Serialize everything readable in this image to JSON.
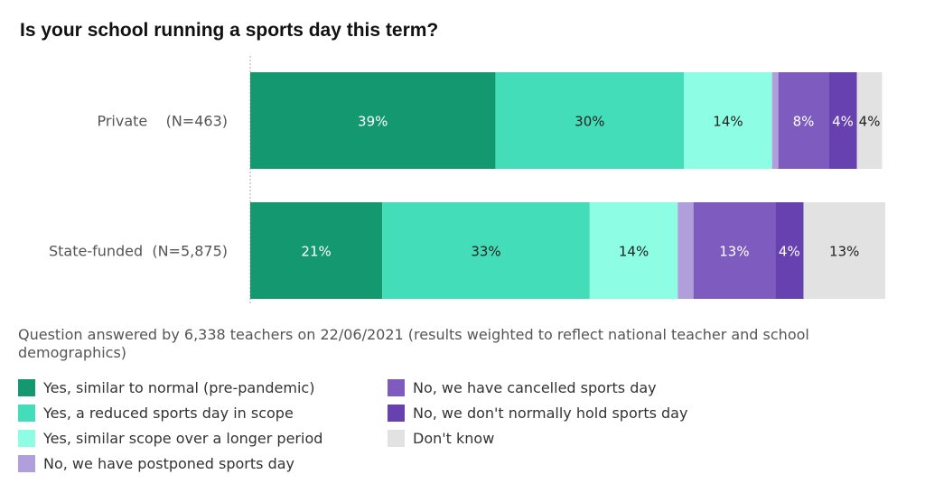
{
  "chart_data": {
    "type": "bar",
    "orientation": "horizontal",
    "stacked": true,
    "title": "Is your school running a sports day this term?",
    "xlim": [
      0,
      100
    ],
    "categories": [
      "Private    (N=463)",
      "State-funded  (N=5,875)"
    ],
    "series": [
      {
        "name": "Yes, similar to normal (pre-pandemic)",
        "color": "#13986f",
        "text_color": "#ffffff",
        "values": [
          39,
          21
        ],
        "labels": [
          "39%",
          "21%"
        ]
      },
      {
        "name": "Yes, a reduced sports day in scope",
        "color": "#43ddb9",
        "text_color": "#222222",
        "values": [
          30,
          33
        ],
        "labels": [
          "30%",
          "33%"
        ]
      },
      {
        "name": "Yes, similar scope over a longer period",
        "color": "#8dfde3",
        "text_color": "#222222",
        "values": [
          14,
          14
        ],
        "labels": [
          "14%",
          "14%"
        ]
      },
      {
        "name": "No, we have postponed sports day",
        "color": "#b19fdb",
        "text_color": "#222222",
        "values": [
          1,
          2.5
        ],
        "labels": [
          "",
          ""
        ]
      },
      {
        "name": "No, we have cancelled sports day",
        "color": "#7e5cbf",
        "text_color": "#ffffff",
        "values": [
          8,
          13
        ],
        "labels": [
          "8%",
          "13%"
        ]
      },
      {
        "name": "No, we don't normally hold sports day",
        "color": "#6841b0",
        "text_color": "#ffffff",
        "values": [
          4.5,
          4.5
        ],
        "labels": [
          "4%",
          "4%"
        ]
      },
      {
        "name": "Don't know",
        "color": "#e2e2e2",
        "text_color": "#222222",
        "values": [
          4,
          13
        ],
        "labels": [
          "4%",
          "13%"
        ]
      }
    ],
    "legend_position": "bottom"
  },
  "note": "Question answered by 6,338 teachers on 22/06/2021 (results weighted to reflect national teacher and school demographics)"
}
